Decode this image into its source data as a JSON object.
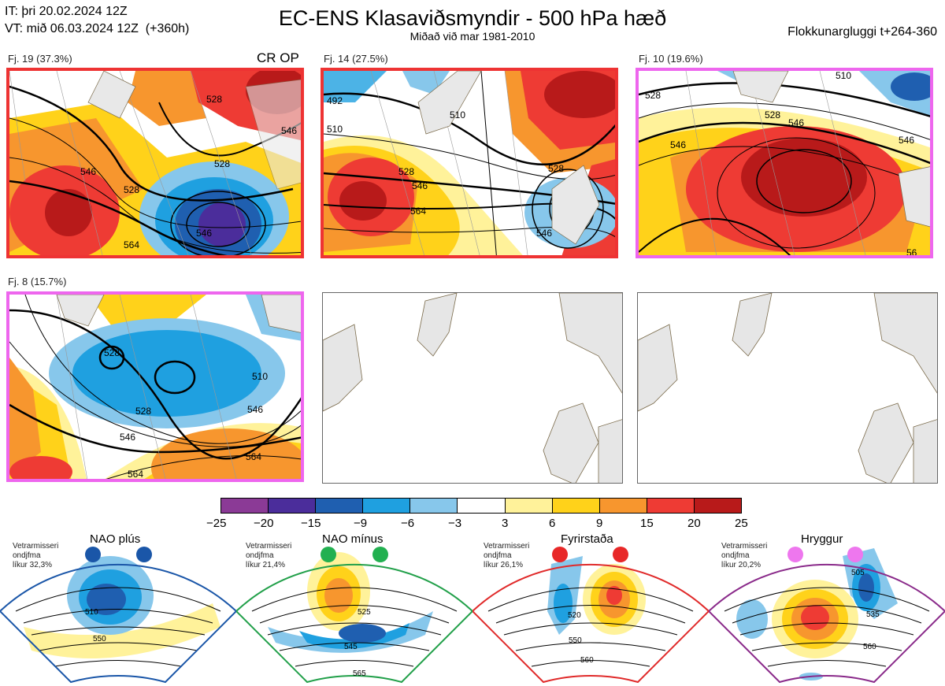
{
  "header": {
    "it_line": "IT: þri 20.02.2024 12Z",
    "vt_line": "VT: mið 06.03.2024 12Z  (+360h)",
    "title": "EC-ENS Klasaviðsmyndir - 500 hPa hæð",
    "subtitle": "Miðað við mar 1981-2010",
    "window": "Flokkunargluggi t+264-360"
  },
  "clusters": [
    {
      "label": "Fj. 19 (37.3%)",
      "tag": "CR OP",
      "border": "#ee3333",
      "contours": [
        "528",
        "528",
        "546",
        "528",
        "546",
        "564",
        "546"
      ]
    },
    {
      "label": "Fj. 14 (27.5%)",
      "tag": "",
      "border": "#ee3333",
      "contours": [
        "492",
        "510",
        "528",
        "546",
        "564",
        "528",
        "546",
        "510"
      ]
    },
    {
      "label": "Fj. 10 (19.6%)",
      "tag": "",
      "border": "#ee66ee",
      "contours": [
        "528",
        "546",
        "528",
        "546",
        "510",
        "546",
        "56"
      ]
    },
    {
      "label": "Fj. 8 (15.7%)",
      "tag": "",
      "border": "#ee66ee",
      "contours": [
        "528",
        "528",
        "546",
        "510",
        "546",
        "564",
        "564"
      ]
    }
  ],
  "colorbar": {
    "colors": [
      "#8b3a96",
      "#4b2d9b",
      "#1f5fb0",
      "#1fa0e0",
      "#87c7eb",
      "#ffffff",
      "#fff29a",
      "#ffd21a",
      "#f7962e",
      "#ee3b34",
      "#b81a1a"
    ],
    "ticks": [
      "−25",
      "−20",
      "−15",
      "−9",
      "−6",
      "−3",
      "3",
      "6",
      "9",
      "15",
      "20",
      "25"
    ]
  },
  "regimes": [
    {
      "name": "NAO plús",
      "info": "Vetrarmisseri\nondjfma\nlíkur 32,3%",
      "dot": "#1a56a8",
      "border": "#1a56a8",
      "labels": [
        "510",
        "550"
      ]
    },
    {
      "name": "NAO mínus",
      "info": "Vetrarmisseri\nondjfma\nlíkur 21,4%",
      "dot": "#22b050",
      "border": "#22a04a",
      "labels": [
        "525",
        "545",
        "565"
      ]
    },
    {
      "name": "Fyrirstaða",
      "info": "Vetrarmisseri\nondjfma\nlíkur 26,1%",
      "dot": "#e82828",
      "border": "#e02a2a",
      "labels": [
        "520",
        "550",
        "560"
      ]
    },
    {
      "name": "Hryggur",
      "info": "Vetrarmisseri\nondjfma\nlíkur 20,2%",
      "dot": "#ee77ee",
      "border": "#8a2a8a",
      "labels": [
        "505",
        "535",
        "560"
      ]
    }
  ]
}
